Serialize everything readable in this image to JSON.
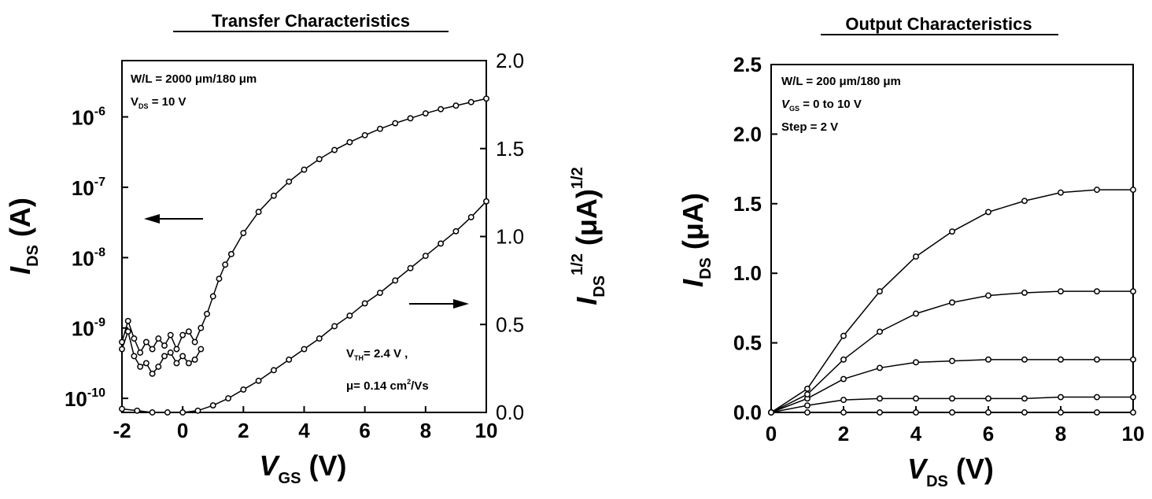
{
  "chart_data": [
    {
      "type": "scatter",
      "title": "Transfer Characteristics",
      "xlabel": {
        "main": "V",
        "sub": "GS",
        "unit": " (V)"
      },
      "ylabel_left": {
        "main": "I",
        "sub": "DS",
        "unit": " (A)"
      },
      "ylabel_right": {
        "main": "I",
        "sub": "DS",
        "sup": "1/2",
        "unit": " (μA)",
        "unit_sup": "1/2"
      },
      "xlim": [
        -2,
        10
      ],
      "ylim_left_log10": [
        -10.2,
        -5.2
      ],
      "ylim_right": [
        0,
        2
      ],
      "x_ticks": [
        "-2",
        "0",
        "2",
        "4",
        "6",
        "8",
        "10"
      ],
      "y_left_ticks": [
        {
          "base": "10",
          "exp": "-10",
          "v": -10
        },
        {
          "base": "10",
          "exp": "-9",
          "v": -9
        },
        {
          "base": "10",
          "exp": "-8",
          "v": -8
        },
        {
          "base": "10",
          "exp": "-7",
          "v": -7
        },
        {
          "base": "10",
          "exp": "-6",
          "v": -6
        }
      ],
      "y_right_ticks": [
        "0.0",
        "0.5",
        "1.0",
        "1.5",
        "2.0"
      ],
      "annotations": {
        "wl": "W/L = 2000 μm/180 μm",
        "vds_main": "V",
        "vds_sub": "DS",
        "vds_rest": " =  10 V",
        "vth_main": "V",
        "vth_sub": "TH",
        "vth_rest": "= 2.4 V ,",
        "mu_main": "μ= 0.14 cm",
        "mu_sup": "2",
        "mu_rest": "/Vs"
      },
      "series": [
        {
          "axis": "left-log",
          "x": [
            -2.0,
            -1.8,
            -1.6,
            -1.4,
            -1.2,
            -1.0,
            -0.8,
            -0.6,
            -0.4,
            -0.2,
            0.0,
            0.2,
            0.4,
            0.6,
            0.8,
            1.0,
            1.2,
            1.4,
            1.6,
            2.0,
            2.5,
            3.0,
            3.5,
            4.0,
            4.5,
            5.0,
            5.5,
            6.0,
            6.5,
            7.0,
            7.5,
            8.0,
            8.5,
            9.0,
            9.5,
            10.0
          ],
          "y_log10": [
            -9.2,
            -8.9,
            -9.15,
            -9.35,
            -9.2,
            -9.3,
            -9.15,
            -9.25,
            -9.1,
            -9.3,
            -9.1,
            -9.05,
            -9.2,
            -9.0,
            -8.8,
            -8.55,
            -8.3,
            -8.1,
            -7.95,
            -7.65,
            -7.35,
            -7.12,
            -6.92,
            -6.75,
            -6.6,
            -6.47,
            -6.36,
            -6.26,
            -6.17,
            -6.09,
            -6.02,
            -5.95,
            -5.89,
            -5.84,
            -5.79,
            -5.74
          ]
        },
        {
          "axis": "left-log",
          "x": [
            -2.0,
            -1.8,
            -1.6,
            -1.4,
            -1.2,
            -1.0,
            -0.8,
            -0.6,
            -0.4,
            -0.2,
            0.0,
            0.2,
            0.4,
            0.6
          ],
          "y_log10": [
            -9.3,
            -9.05,
            -9.4,
            -9.55,
            -9.5,
            -9.65,
            -9.55,
            -9.4,
            -9.35,
            -9.5,
            -9.4,
            -9.5,
            -9.45,
            -9.3
          ]
        },
        {
          "axis": "right",
          "x": [
            -2.0,
            -1.5,
            -1.0,
            -0.5,
            0.0,
            0.5,
            1.0,
            1.5,
            2.0,
            2.5,
            3.0,
            3.5,
            4.0,
            4.5,
            5.0,
            5.5,
            6.0,
            6.5,
            7.0,
            7.5,
            8.0,
            8.5,
            9.0,
            9.5,
            10.0
          ],
          "y": [
            0.02,
            0.01,
            0.0,
            0.0,
            0.0,
            0.01,
            0.04,
            0.08,
            0.13,
            0.18,
            0.24,
            0.3,
            0.36,
            0.42,
            0.49,
            0.55,
            0.62,
            0.68,
            0.75,
            0.82,
            0.89,
            0.96,
            1.03,
            1.11,
            1.2
          ]
        }
      ]
    },
    {
      "type": "scatter",
      "title": "Output Characteristics",
      "xlabel": {
        "main": "V",
        "sub": "DS",
        "unit": " (V)"
      },
      "ylabel": {
        "main": "I",
        "sub": "DS",
        "unit": " (μA)"
      },
      "xlim": [
        0,
        10
      ],
      "ylim": [
        0,
        2.5
      ],
      "x_ticks": [
        "0",
        "2",
        "4",
        "6",
        "8",
        "10"
      ],
      "y_ticks": [
        "0.0",
        "0.5",
        "1.0",
        "1.5",
        "2.0",
        "2.5"
      ],
      "annotations": {
        "wl": "W/L = 200 μm/180 μm",
        "vgs_main": "V",
        "vgs_sub": "GS",
        "vgs_rest": " = 0  to 10 V",
        "step": "Step = 2 V"
      },
      "series": [
        {
          "vgs": 0,
          "x": [
            0,
            1,
            2,
            3,
            4,
            5,
            6,
            7,
            8,
            9,
            10
          ],
          "y": [
            0.0,
            0.0,
            0.0,
            0.0,
            0.0,
            0.0,
            0.0,
            0.0,
            0.0,
            0.0,
            0.0
          ]
        },
        {
          "vgs": 2,
          "x": [
            0,
            1,
            2,
            3,
            4,
            5,
            6,
            7,
            8,
            9,
            10
          ],
          "y": [
            0.0,
            0.05,
            0.09,
            0.1,
            0.1,
            0.1,
            0.1,
            0.1,
            0.11,
            0.11,
            0.11
          ]
        },
        {
          "vgs": 4,
          "x": [
            0,
            1,
            2,
            3,
            4,
            5,
            6,
            7,
            8,
            9,
            10
          ],
          "y": [
            0.0,
            0.1,
            0.24,
            0.32,
            0.36,
            0.37,
            0.38,
            0.38,
            0.38,
            0.38,
            0.38
          ]
        },
        {
          "vgs": 6,
          "x": [
            0,
            1,
            2,
            3,
            4,
            5,
            6,
            7,
            8,
            9,
            10
          ],
          "y": [
            0.0,
            0.13,
            0.38,
            0.58,
            0.71,
            0.79,
            0.84,
            0.86,
            0.87,
            0.87,
            0.87
          ]
        },
        {
          "vgs": 8,
          "x": [
            0,
            1,
            2,
            3,
            4,
            5,
            6,
            7,
            8,
            9,
            10
          ],
          "y": [
            0.0,
            0.17,
            0.55,
            0.87,
            1.12,
            1.3,
            1.44,
            1.52,
            1.58,
            1.6,
            1.6
          ]
        }
      ]
    }
  ]
}
